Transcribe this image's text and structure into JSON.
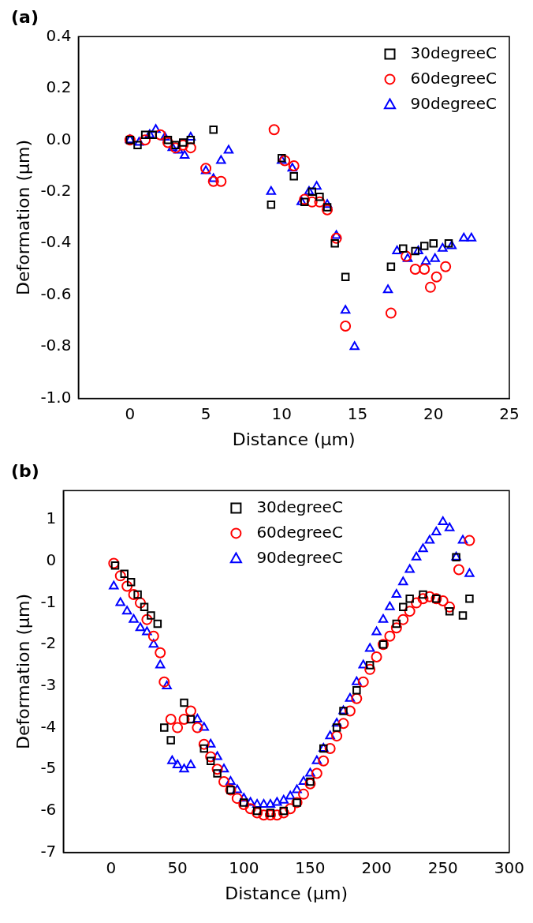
{
  "chart_data": [
    {
      "type": "scatter",
      "title": "(a)",
      "x_label": "Distance (μm)",
      "y_label": "Deformation (μm)",
      "xlim": [
        -3.4,
        25
      ],
      "xticks": [
        0,
        5,
        10,
        15,
        20,
        25
      ],
      "ylim": [
        -1.0,
        0.4
      ],
      "yticks": [
        {
          "value": -1.0,
          "label": "-1.0"
        },
        -0.8,
        -0.6,
        -0.4,
        -0.2,
        {
          "value": 0,
          "label": "0.0"
        },
        0.2,
        0.4
      ],
      "grid": false,
      "legend": "upper right",
      "series": [
        {
          "name": "30degreeC",
          "color": "#000000",
          "marker": "square",
          "x": [
            0,
            0.5,
            1,
            1.5,
            2.5,
            3,
            3.5,
            4,
            5.5,
            9.3,
            10,
            10.8,
            11.5,
            12,
            12.5,
            13,
            13.5,
            14.2,
            17.2,
            18,
            18.8,
            19.4,
            20,
            21
          ],
          "values": [
            0,
            -0.02,
            0.02,
            0.02,
            0.0,
            -0.02,
            -0.01,
            0.0,
            0.04,
            -0.25,
            -0.07,
            -0.14,
            -0.24,
            -0.2,
            -0.22,
            -0.26,
            -0.4,
            -0.53,
            -0.49,
            -0.42,
            -0.43,
            -0.41,
            -0.4,
            -0.4
          ]
        },
        {
          "name": "60degreeC",
          "color": "#ff0000",
          "marker": "circle",
          "x": [
            0,
            1,
            2,
            2.5,
            3,
            3.5,
            4,
            5,
            5.5,
            6,
            9.5,
            10.2,
            10.8,
            11.5,
            12,
            12.5,
            13,
            13.6,
            14.2,
            17.2,
            18.2,
            18.8,
            19.4,
            19.8,
            20.2,
            20.8
          ],
          "values": [
            0,
            0.0,
            0.02,
            -0.01,
            -0.03,
            -0.02,
            -0.03,
            -0.11,
            -0.16,
            -0.16,
            0.04,
            -0.08,
            -0.1,
            -0.23,
            -0.24,
            -0.24,
            -0.27,
            -0.38,
            -0.72,
            -0.67,
            -0.45,
            -0.5,
            -0.5,
            -0.57,
            -0.53,
            -0.49
          ]
        },
        {
          "name": "90degreeC",
          "color": "#0000ff",
          "marker": "triangle",
          "x": [
            0,
            0.6,
            1.3,
            1.7,
            2.3,
            2.8,
            3.2,
            3.6,
            4,
            5,
            5.5,
            6,
            6.5,
            9.3,
            10,
            10.7,
            11.3,
            11.8,
            12.3,
            13,
            13.6,
            14.2,
            14.8,
            17,
            17.6,
            18.3,
            19,
            19.5,
            20.1,
            20.6,
            21.2,
            22,
            22.5
          ],
          "values": [
            0,
            -0.01,
            0.02,
            0.04,
            0.01,
            -0.03,
            -0.04,
            -0.06,
            0.01,
            -0.12,
            -0.15,
            -0.08,
            -0.04,
            -0.2,
            -0.08,
            -0.11,
            -0.24,
            -0.2,
            -0.18,
            -0.25,
            -0.37,
            -0.66,
            -0.8,
            -0.58,
            -0.43,
            -0.46,
            -0.43,
            -0.47,
            -0.46,
            -0.42,
            -0.41,
            -0.38,
            -0.38
          ]
        }
      ]
    },
    {
      "type": "scatter",
      "title": "(b)",
      "x_label": "Distance (μm)",
      "y_label": "Deformation (μm)",
      "xlim": [
        -36,
        300
      ],
      "xticks": [
        0,
        50,
        100,
        150,
        200,
        250,
        300
      ],
      "ylim": [
        -7,
        1.7
      ],
      "yticks": [
        -7,
        -6,
        -5,
        -4,
        -3,
        -2,
        -1,
        0,
        1
      ],
      "grid": false,
      "legend": "upper center",
      "series": [
        {
          "name": "30degreeC",
          "color": "#000000",
          "marker": "square",
          "x": [
            3,
            10,
            15,
            20,
            25,
            30,
            35,
            40,
            45,
            55,
            60,
            70,
            75,
            80,
            90,
            100,
            110,
            120,
            130,
            140,
            150,
            160,
            170,
            175,
            185,
            195,
            205,
            215,
            220,
            225,
            235,
            245,
            255,
            260,
            265,
            270
          ],
          "values": [
            -0.1,
            -0.3,
            -0.5,
            -0.8,
            -1.1,
            -1.3,
            -1.5,
            -4.0,
            -4.3,
            -3.4,
            -3.8,
            -4.5,
            -4.8,
            -5.1,
            -5.5,
            -5.8,
            -6.0,
            -6.05,
            -6.0,
            -5.8,
            -5.3,
            -4.5,
            -4.0,
            -3.6,
            -3.1,
            -2.5,
            -2.0,
            -1.5,
            -1.1,
            -0.9,
            -0.8,
            -0.9,
            -1.2,
            0.1,
            -1.3,
            -0.9
          ]
        },
        {
          "name": "60degreeC",
          "color": "#ff0000",
          "marker": "circle",
          "x": [
            2,
            7,
            12,
            17,
            22,
            27,
            32,
            37,
            40,
            45,
            50,
            55,
            60,
            65,
            70,
            75,
            80,
            85,
            90,
            95,
            100,
            105,
            110,
            115,
            120,
            125,
            130,
            135,
            140,
            145,
            150,
            155,
            160,
            165,
            170,
            175,
            180,
            185,
            190,
            195,
            200,
            205,
            210,
            215,
            220,
            225,
            230,
            235,
            240,
            245,
            250,
            255,
            262,
            270
          ],
          "values": [
            -0.05,
            -0.35,
            -0.6,
            -0.8,
            -1.0,
            -1.4,
            -1.8,
            -2.2,
            -2.9,
            -3.8,
            -4.0,
            -3.8,
            -3.6,
            -4.0,
            -4.4,
            -4.7,
            -5.0,
            -5.3,
            -5.5,
            -5.7,
            -5.85,
            -5.95,
            -6.05,
            -6.1,
            -6.1,
            -6.1,
            -6.05,
            -5.95,
            -5.8,
            -5.6,
            -5.35,
            -5.1,
            -4.8,
            -4.5,
            -4.2,
            -3.9,
            -3.6,
            -3.3,
            -2.9,
            -2.6,
            -2.3,
            -2.0,
            -1.8,
            -1.6,
            -1.4,
            -1.2,
            -1.0,
            -0.9,
            -0.85,
            -0.9,
            -0.95,
            -1.1,
            -0.2,
            0.5
          ]
        },
        {
          "name": "90degreeC",
          "color": "#0000ff",
          "marker": "triangle",
          "x": [
            2,
            7,
            12,
            17,
            22,
            27,
            32,
            37,
            42,
            46,
            50,
            55,
            60,
            65,
            70,
            75,
            80,
            85,
            90,
            95,
            100,
            105,
            110,
            115,
            120,
            125,
            130,
            135,
            140,
            145,
            150,
            155,
            160,
            165,
            170,
            175,
            180,
            185,
            190,
            195,
            200,
            205,
            210,
            215,
            220,
            225,
            230,
            235,
            240,
            245,
            250,
            255,
            260,
            265,
            270
          ],
          "values": [
            -0.6,
            -1.0,
            -1.2,
            -1.4,
            -1.6,
            -1.7,
            -2.0,
            -2.5,
            -3.0,
            -4.8,
            -4.9,
            -5.0,
            -4.9,
            -3.8,
            -4.0,
            -4.4,
            -4.7,
            -5.0,
            -5.3,
            -5.5,
            -5.7,
            -5.8,
            -5.85,
            -5.85,
            -5.85,
            -5.8,
            -5.75,
            -5.65,
            -5.5,
            -5.3,
            -5.1,
            -4.8,
            -4.5,
            -4.2,
            -3.9,
            -3.6,
            -3.3,
            -2.9,
            -2.5,
            -2.1,
            -1.7,
            -1.4,
            -1.1,
            -0.8,
            -0.5,
            -0.2,
            0.1,
            0.3,
            0.5,
            0.7,
            0.95,
            0.8,
            0.1,
            0.5,
            -0.3
          ]
        }
      ]
    }
  ]
}
